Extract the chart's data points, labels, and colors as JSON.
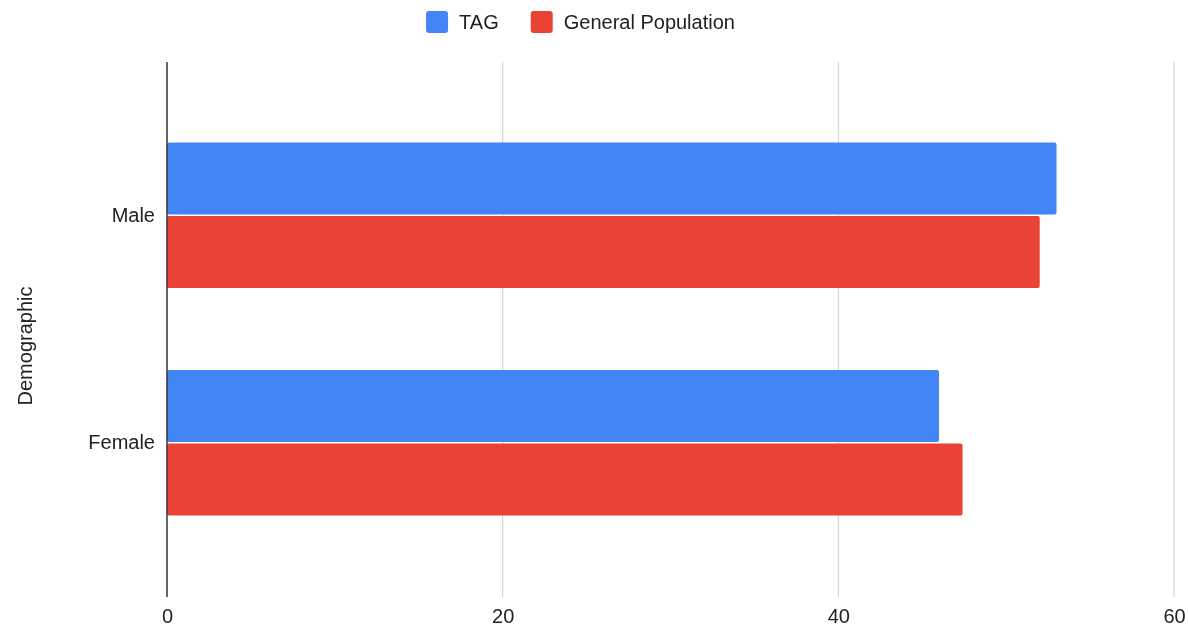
{
  "chart_data": {
    "type": "bar",
    "orientation": "horizontal",
    "ylabel": "Demographic",
    "categories": [
      "Male",
      "Female"
    ],
    "series": [
      {
        "name": "TAG",
        "color": "#4285f4",
        "values": [
          53,
          46
        ]
      },
      {
        "name": "General Population",
        "color": "#ea4335",
        "values": [
          52,
          47.4
        ]
      }
    ],
    "xlim": [
      0,
      60
    ],
    "xticks": [
      0,
      20,
      40,
      60
    ],
    "grid": "x",
    "legend": "top"
  }
}
